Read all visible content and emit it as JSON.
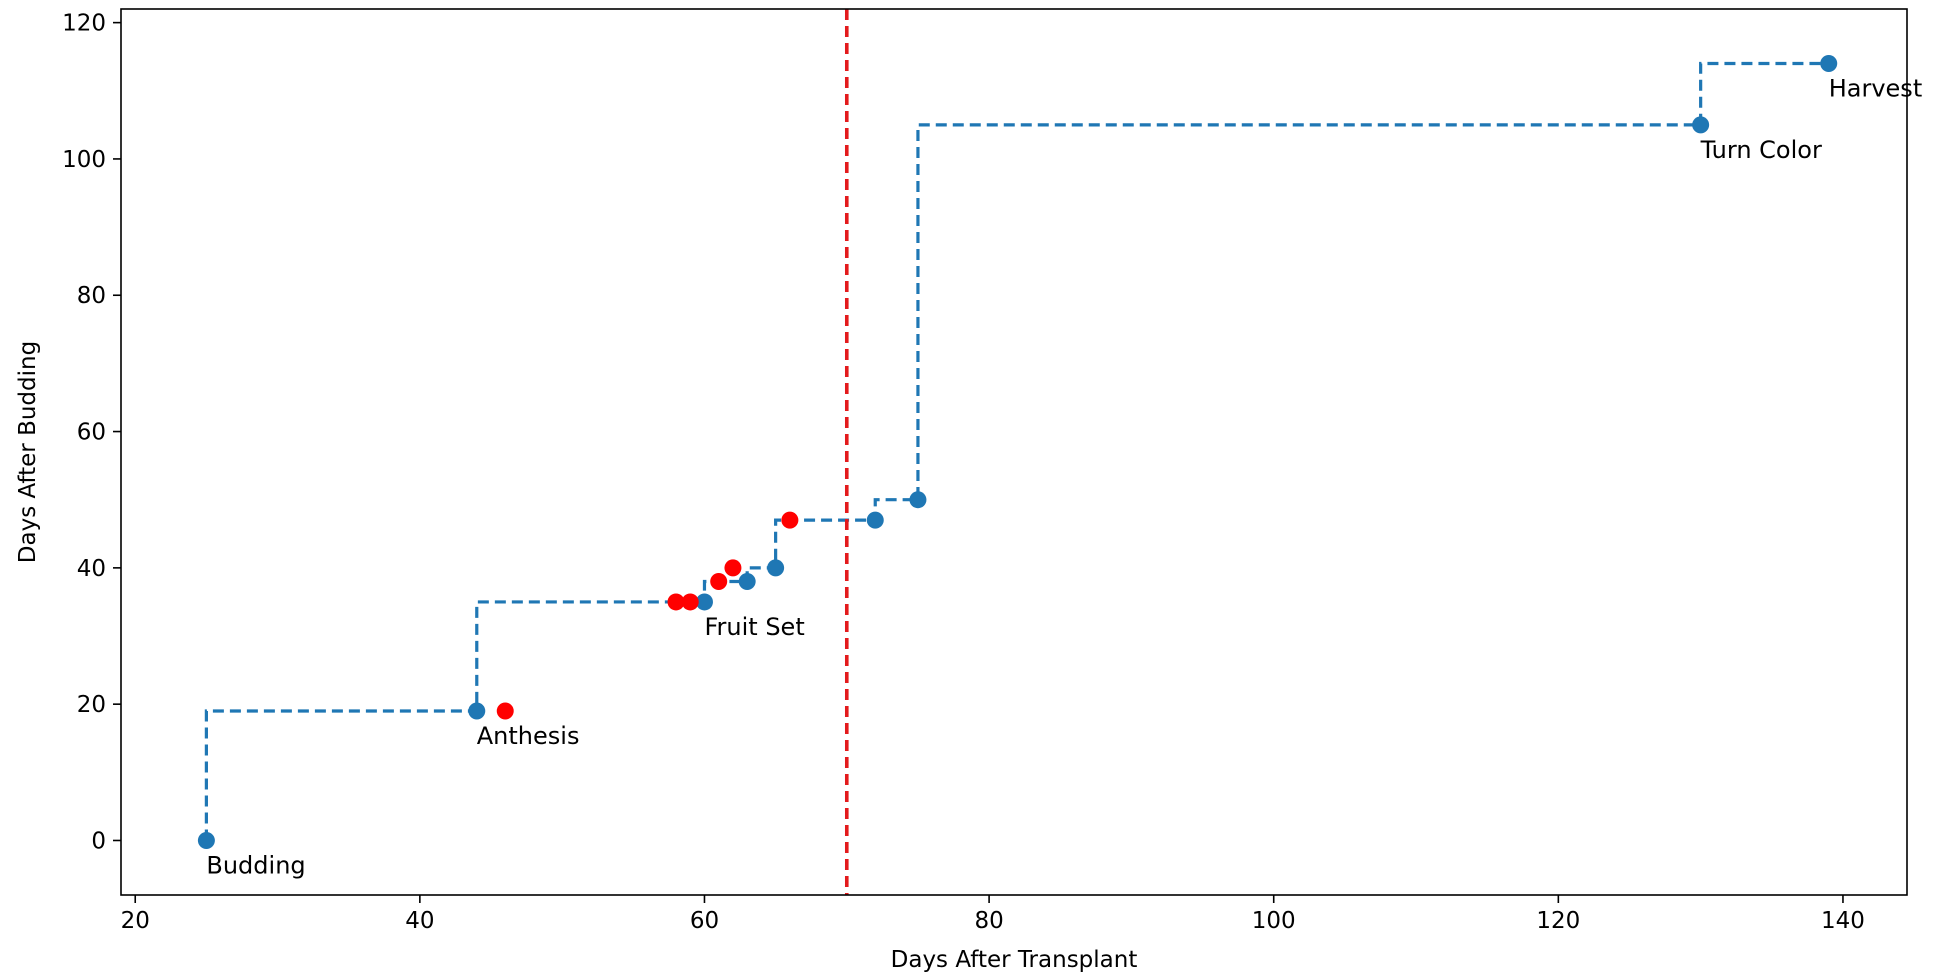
{
  "chart_data": {
    "type": "scatter",
    "title": "",
    "xlabel": "Days After Transplant",
    "ylabel": "Days After Budding",
    "xlim": [
      19,
      144.5
    ],
    "ylim": [
      -8,
      122
    ],
    "xticks": [
      20,
      40,
      60,
      80,
      100,
      120,
      140
    ],
    "yticks": [
      0,
      20,
      40,
      60,
      80,
      100,
      120
    ],
    "grid": false,
    "colors": {
      "step_line": "#1f77b4",
      "stage_point": "#1f77b4",
      "red_point": "#ff0000",
      "vline": "#e31a1c"
    },
    "series": [
      {
        "style": "step-post-dashed",
        "points": [
          {
            "x": 25,
            "y": 0
          },
          {
            "x": 44,
            "y": 19
          },
          {
            "x": 60,
            "y": 35
          },
          {
            "x": 63,
            "y": 38
          },
          {
            "x": 65,
            "y": 40
          },
          {
            "x": 72,
            "y": 47
          },
          {
            "x": 75,
            "y": 50
          },
          {
            "x": 130,
            "y": 105
          },
          {
            "x": 139,
            "y": 114
          }
        ]
      },
      {
        "style": "red-markers",
        "points": [
          {
            "x": 46,
            "y": 19
          },
          {
            "x": 58,
            "y": 35
          },
          {
            "x": 59,
            "y": 35
          },
          {
            "x": 61,
            "y": 38
          },
          {
            "x": 62,
            "y": 40
          },
          {
            "x": 66,
            "y": 47
          }
        ]
      }
    ],
    "annotations": [
      {
        "text": "Budding",
        "x": 25,
        "y": 0
      },
      {
        "text": "Anthesis",
        "x": 44,
        "y": 19
      },
      {
        "text": "Fruit Set",
        "x": 60,
        "y": 35
      },
      {
        "text": "Turn Color",
        "x": 130,
        "y": 105
      },
      {
        "text": "Harvest",
        "x": 139,
        "y": 114
      }
    ],
    "vline": {
      "x": 70,
      "style": "dashed"
    }
  }
}
